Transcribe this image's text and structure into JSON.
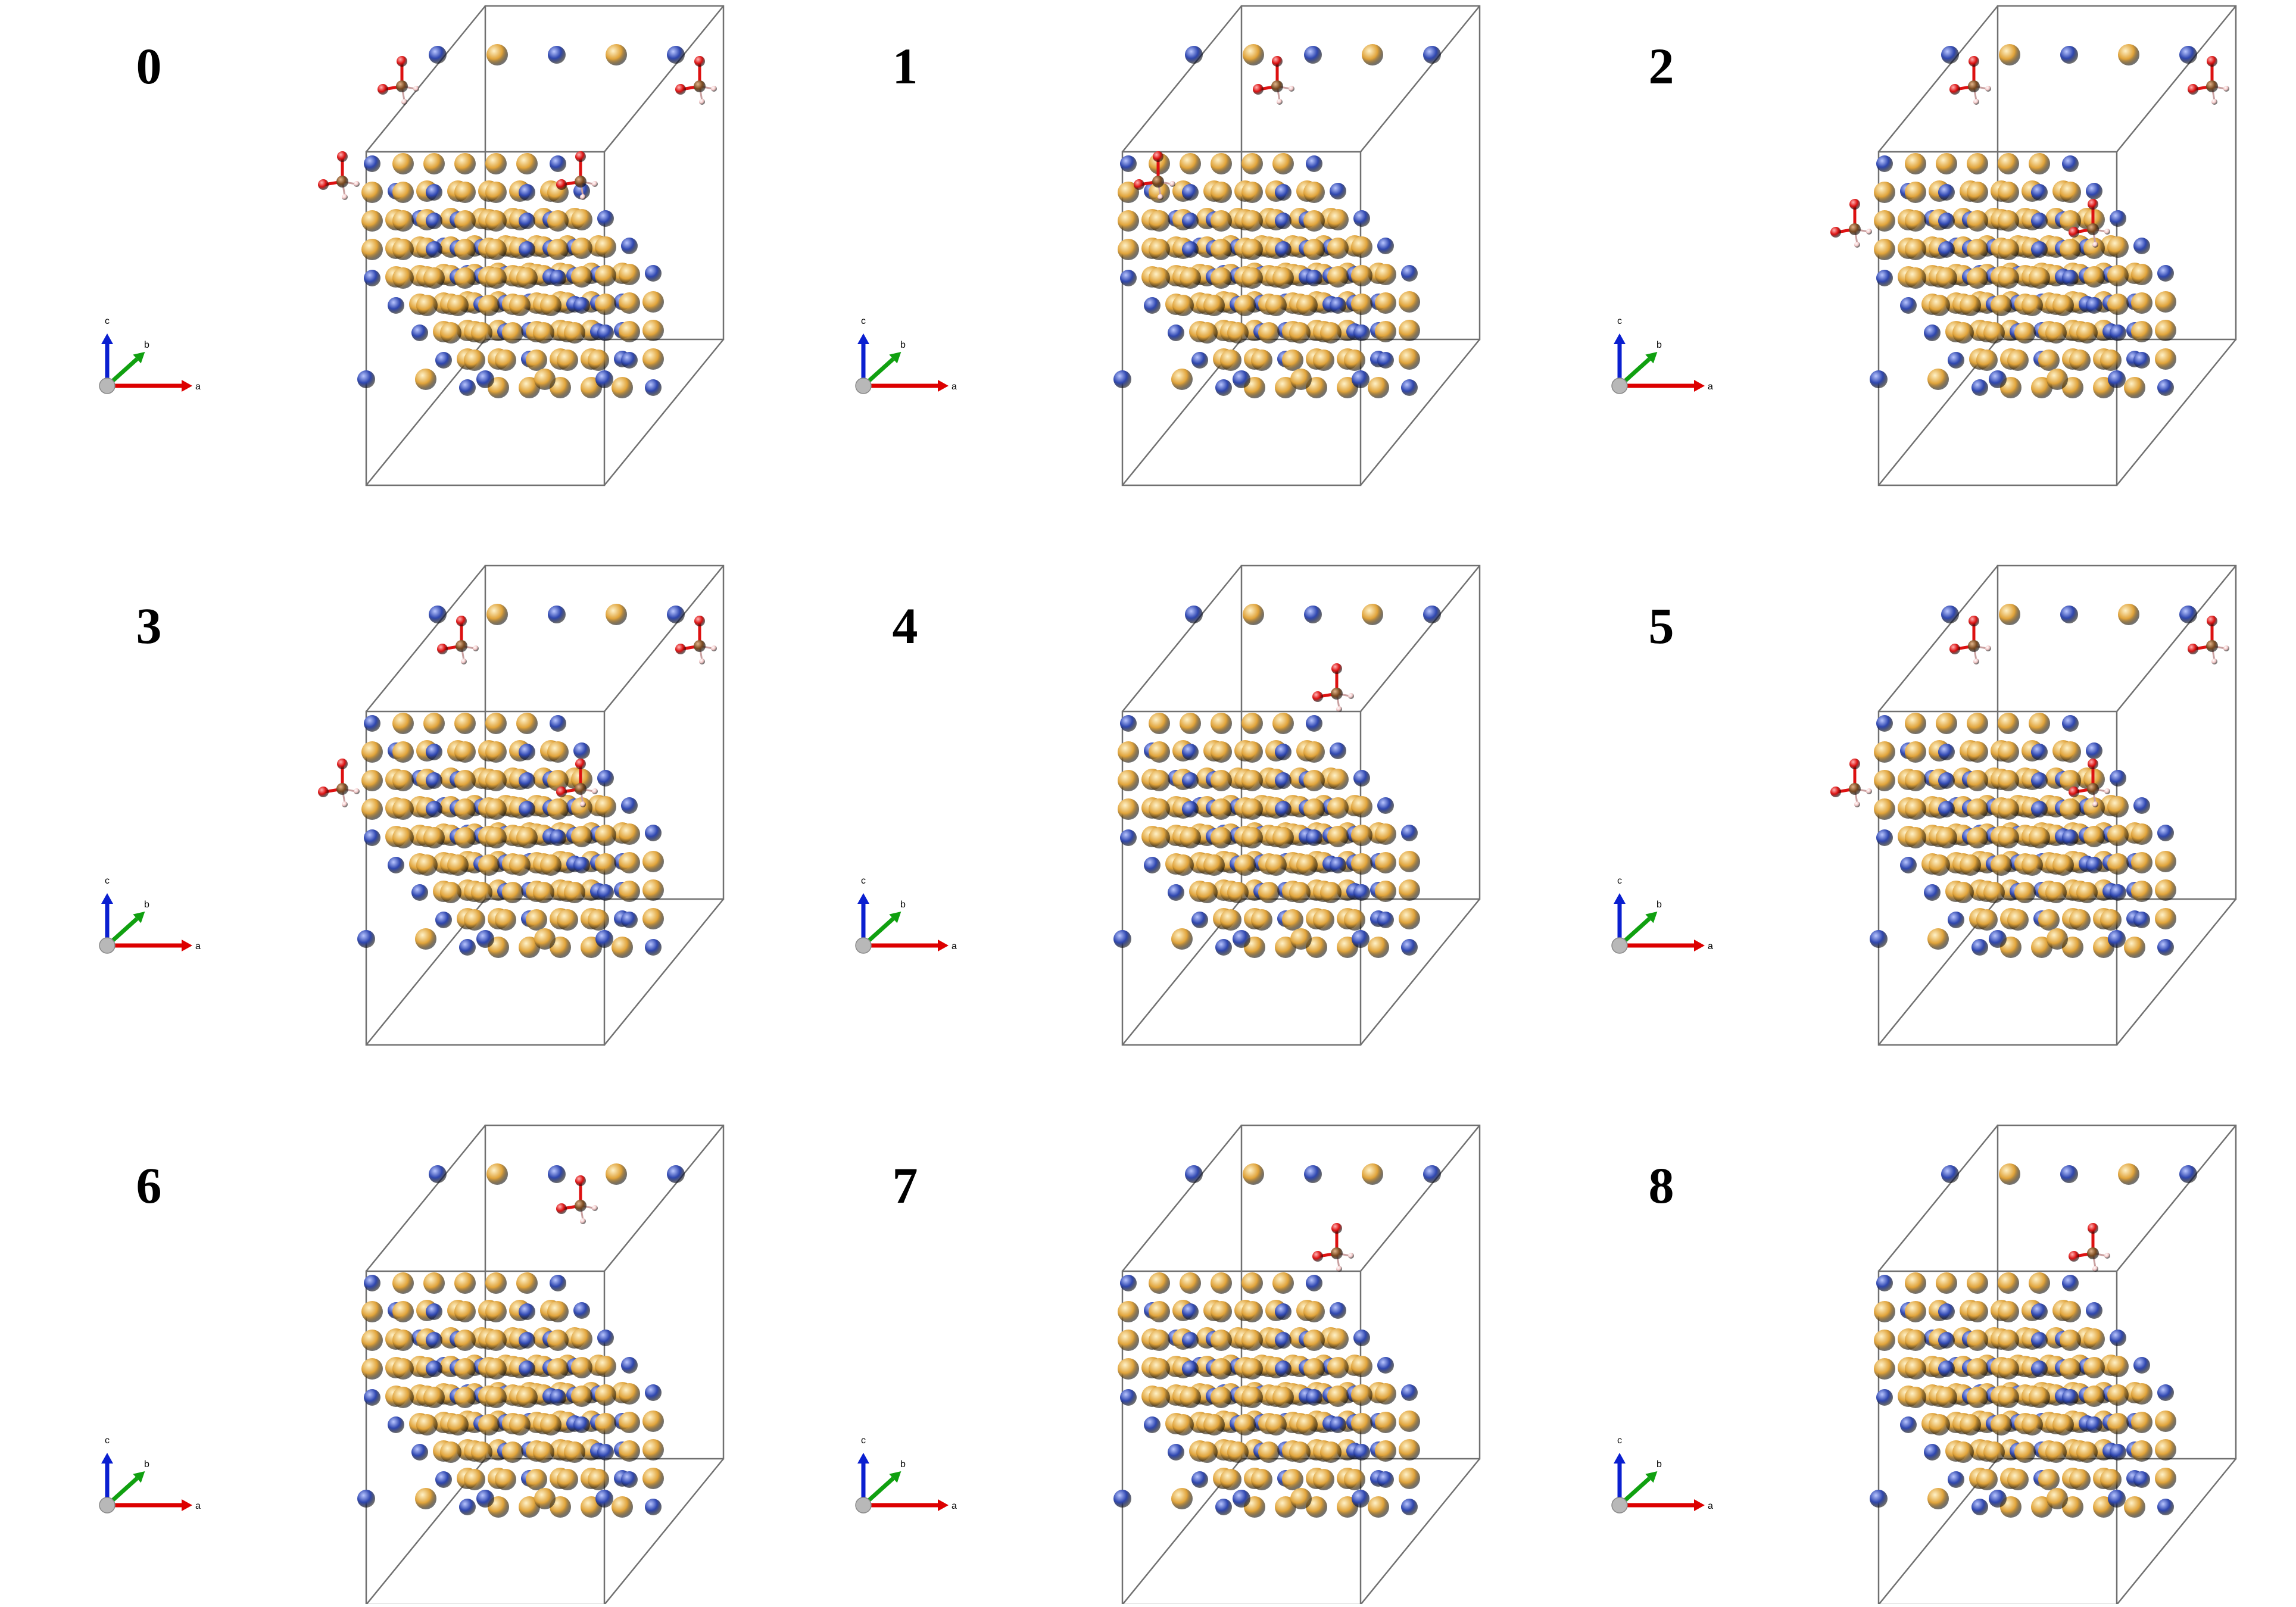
{
  "figure": {
    "panels": [
      {
        "label": "0",
        "adsorbates": [
          {
            "site": "top-back",
            "col": 1,
            "row": 0
          },
          {
            "site": "top-back",
            "col": 6,
            "row": 0
          },
          {
            "site": "front-left",
            "col": 0,
            "row": 2
          },
          {
            "site": "front-mid",
            "col": 4,
            "row": 2
          }
        ]
      },
      {
        "label": "1",
        "adsorbates": [
          {
            "site": "top-back",
            "col": 3,
            "row": 0
          },
          {
            "site": "front-left",
            "col": 1,
            "row": 2
          }
        ]
      },
      {
        "label": "2",
        "adsorbates": [
          {
            "site": "top-back",
            "col": 2,
            "row": 0
          },
          {
            "site": "top-back",
            "col": 6,
            "row": 0
          },
          {
            "site": "front-left",
            "col": 0,
            "row": 3
          },
          {
            "site": "front-mid",
            "col": 4,
            "row": 3
          }
        ]
      },
      {
        "label": "3",
        "adsorbates": [
          {
            "site": "top-back",
            "col": 2,
            "row": 0
          },
          {
            "site": "top-back",
            "col": 6,
            "row": 0
          },
          {
            "site": "front-left",
            "col": 0,
            "row": 3
          },
          {
            "site": "front-mid",
            "col": 4,
            "row": 3
          }
        ]
      },
      {
        "label": "4",
        "adsorbates": [
          {
            "site": "mid",
            "col": 4,
            "row": 1
          }
        ]
      },
      {
        "label": "5",
        "adsorbates": [
          {
            "site": "top-back",
            "col": 2,
            "row": 0
          },
          {
            "site": "top-back",
            "col": 6,
            "row": 0
          },
          {
            "site": "front-left",
            "col": 0,
            "row": 3
          },
          {
            "site": "front-mid",
            "col": 4,
            "row": 3
          }
        ]
      },
      {
        "label": "6",
        "adsorbates": [
          {
            "site": "mid",
            "col": 4,
            "row": 0
          }
        ]
      },
      {
        "label": "7",
        "adsorbates": [
          {
            "site": "mid",
            "col": 4,
            "row": 1
          }
        ]
      },
      {
        "label": "8",
        "adsorbates": [
          {
            "site": "mid",
            "col": 4,
            "row": 1
          }
        ]
      }
    ],
    "axes_labels": {
      "a": "a",
      "b": "b",
      "c": "c"
    },
    "colors": {
      "gold_atom": "#e0a33a",
      "blue_atom": "#2f47b0",
      "oxygen": "#dd1111",
      "carbon": "#7a4a20",
      "hydrogen": "#f3c7c7",
      "cell_edge": "#707070",
      "axis_a": "#dd0000",
      "axis_b": "#10a010",
      "axis_c": "#0a1fd0",
      "origin": "#b8b8b8"
    }
  }
}
